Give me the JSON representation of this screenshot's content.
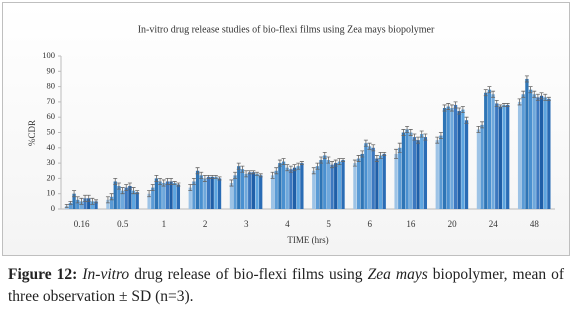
{
  "chart_data": {
    "type": "bar",
    "title": "In-vitro drug release studies of bio-flexi films using Zea mays biopolymer",
    "ylabel": "%CDR",
    "xlabel": "TIME (hrs)",
    "categories": [
      "0.16",
      "0.5",
      "1",
      "2",
      "3",
      "4",
      "5",
      "6",
      "16",
      "20",
      "24",
      "48"
    ],
    "ylim": [
      0,
      100
    ],
    "yticks": [
      0,
      10,
      20,
      30,
      40,
      50,
      60,
      70,
      80,
      90,
      100
    ],
    "series": [
      {
        "color": "#9dc3e6",
        "values": [
          2,
          6,
          10,
          14,
          17,
          22,
          25,
          30,
          36,
          45,
          52,
          70
        ],
        "errors": [
          1,
          2,
          2,
          2,
          2,
          2,
          2,
          2,
          3,
          2,
          2,
          2
        ]
      },
      {
        "color": "#5b9bd5",
        "values": [
          4,
          8,
          14,
          18,
          22,
          25,
          28,
          33,
          40,
          48,
          55,
          75
        ],
        "errors": [
          1,
          2,
          2,
          2,
          2,
          2,
          2,
          2,
          3,
          2,
          2,
          2
        ]
      },
      {
        "color": "#2e75b6",
        "values": [
          10,
          18,
          20,
          25,
          28,
          30,
          32,
          36,
          50,
          66,
          76,
          85
        ],
        "errors": [
          2,
          2,
          2,
          2,
          2,
          2,
          2,
          2,
          2,
          2,
          2,
          2
        ]
      },
      {
        "color": "#4a90d0",
        "values": [
          6,
          15,
          18,
          22,
          26,
          31,
          35,
          43,
          52,
          67,
          78,
          78
        ],
        "errors": [
          2,
          2,
          2,
          2,
          2,
          2,
          2,
          2,
          2,
          2,
          2,
          2
        ]
      },
      {
        "color": "#6fa8dc",
        "values": [
          5,
          12,
          17,
          20,
          23,
          27,
          32,
          41,
          50,
          66,
          75,
          75
        ],
        "errors": [
          2,
          2,
          2,
          2,
          2,
          2,
          2,
          2,
          2,
          2,
          2,
          2
        ]
      },
      {
        "color": "#3c78c0",
        "values": [
          7,
          14,
          18,
          21,
          24,
          26,
          29,
          40,
          47,
          68,
          69,
          73
        ],
        "errors": [
          2,
          2,
          2,
          1,
          1,
          2,
          2,
          2,
          2,
          2,
          2,
          2
        ]
      },
      {
        "color": "#1f5fa8",
        "values": [
          7,
          15,
          18,
          21,
          24,
          27,
          30,
          33,
          45,
          64,
          67,
          74
        ],
        "errors": [
          2,
          2,
          2,
          1,
          1,
          2,
          2,
          2,
          2,
          2,
          1,
          2
        ]
      },
      {
        "color": "#5da5e0",
        "values": [
          5,
          12,
          17,
          21,
          23,
          28,
          31,
          35,
          49,
          65,
          68,
          73
        ],
        "errors": [
          2,
          2,
          1,
          1,
          1,
          2,
          2,
          2,
          2,
          2,
          1,
          2
        ]
      },
      {
        "color": "#2a6cb5",
        "values": [
          5,
          11,
          16,
          20,
          22,
          30,
          32,
          36,
          47,
          58,
          68,
          72
        ],
        "errors": [
          1,
          1,
          1,
          1,
          1,
          1,
          1,
          1,
          2,
          2,
          1,
          1
        ]
      }
    ]
  },
  "caption": {
    "label": "Figure 12:",
    "parts": [
      "In-vitro",
      "drug release of bio-flexi films using",
      "Zea mays",
      "biopolymer, mean of three observation ± SD (n=3)."
    ]
  }
}
